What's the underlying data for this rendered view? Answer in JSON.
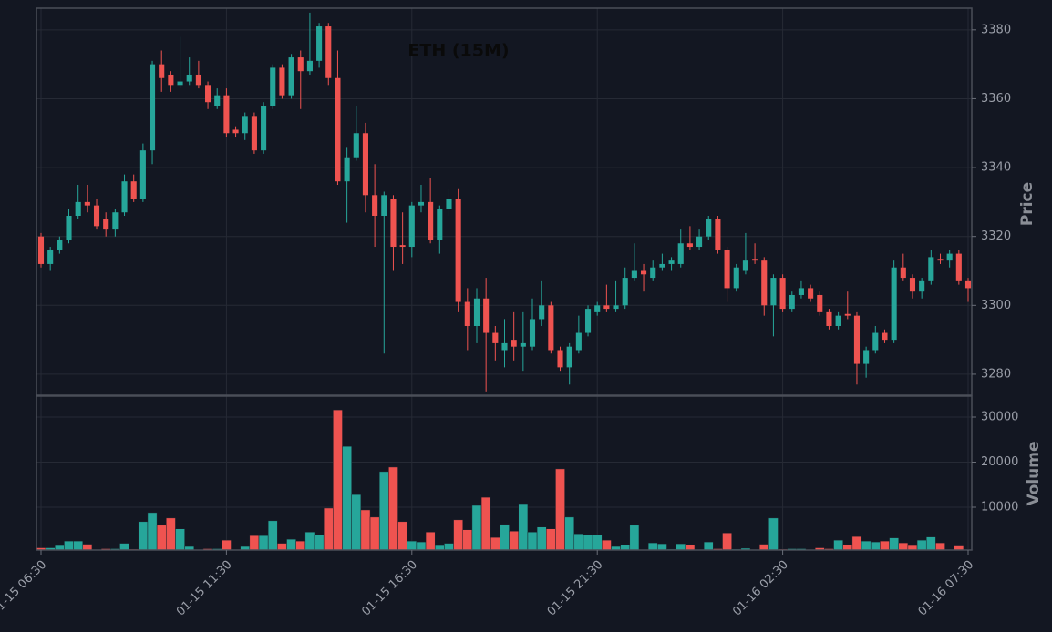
{
  "chart_data": {
    "type": "candlestick",
    "title": "ETH (15M)",
    "categories": [
      "01-15 06:30",
      null,
      null,
      null,
      null,
      null,
      null,
      null,
      null,
      null,
      null,
      null,
      null,
      null,
      null,
      null,
      null,
      null,
      null,
      null,
      "01-15 11:30",
      null,
      null,
      null,
      null,
      null,
      null,
      null,
      null,
      null,
      null,
      null,
      null,
      null,
      null,
      null,
      null,
      null,
      null,
      null,
      "01-15 16:30",
      null,
      null,
      null,
      null,
      null,
      null,
      null,
      null,
      null,
      null,
      null,
      null,
      null,
      null,
      null,
      null,
      null,
      null,
      null,
      "01-15 21:30",
      null,
      null,
      null,
      null,
      null,
      null,
      null,
      null,
      null,
      null,
      null,
      null,
      null,
      null,
      null,
      null,
      null,
      null,
      null,
      "01-16 02:30",
      null,
      null,
      null,
      null,
      null,
      null,
      null,
      null,
      null,
      null,
      null,
      null,
      null,
      null,
      null,
      null,
      null,
      null,
      null,
      "01-16 07:30"
    ],
    "open": [
      3320,
      3312,
      3316,
      3319,
      3326,
      3330,
      3329,
      3325,
      3322,
      3327,
      3336,
      3331,
      3345,
      3370,
      3367,
      3364,
      3365,
      3367,
      3364,
      3358,
      3361,
      3351,
      3350,
      3355,
      3345,
      3358,
      3369,
      3361,
      3372,
      3368,
      3371,
      3381,
      3366,
      3336,
      3343,
      3350,
      3332,
      3326,
      3331,
      3317.5,
      3317,
      3329,
      3330,
      3319,
      3328,
      3331,
      3301,
      3294,
      3302,
      3292,
      3287,
      3290,
      3288,
      3288,
      3296,
      3300,
      3287,
      3282,
      3287,
      3292,
      3298,
      3300,
      3299,
      3300,
      3308,
      3310,
      3308,
      3311,
      3312,
      3312,
      3318,
      3317,
      3320,
      3325,
      3316,
      3305,
      3310,
      3313.5,
      3313,
      3300,
      3308,
      3299,
      3303,
      3305,
      3303,
      3298,
      3294,
      3297.5,
      3297,
      3283,
      3287,
      3292,
      3290,
      3311,
      3308,
      3304,
      3307,
      3313.5,
      3313,
      3315,
      3307
    ],
    "high": [
      3321,
      3317,
      3320,
      3328,
      3335,
      3335,
      3331,
      3327,
      3328,
      3338,
      3338,
      3347,
      3371,
      3374,
      3368,
      3378,
      3372,
      3371,
      3365,
      3363,
      3363,
      3352,
      3356,
      3356,
      3359,
      3370,
      3370,
      3373,
      3374,
      3385,
      3382,
      3382,
      3374,
      3346,
      3358,
      3353,
      3341,
      3333,
      3332,
      3327,
      3330,
      3335,
      3337,
      3329,
      3334,
      3334,
      3305,
      3305,
      3308,
      3294,
      3296,
      3298,
      3298,
      3302,
      3307,
      3301,
      3288,
      3289,
      3297,
      3300,
      3301,
      3306,
      3307,
      3311,
      3318,
      3312,
      3313,
      3315,
      3314,
      3322,
      3323,
      3322,
      3326,
      3326,
      3317,
      3312,
      3321,
      3318,
      3314,
      3309,
      3309,
      3304,
      3307,
      3306,
      3304,
      3299,
      3298,
      3304,
      3298,
      3288,
      3294,
      3293,
      3313,
      3315,
      3309,
      3308,
      3316,
      3315,
      3316,
      3316,
      3308
    ],
    "low": [
      3311,
      3310,
      3315,
      3318,
      3325,
      3327,
      3322,
      3320,
      3320,
      3326,
      3330,
      3330,
      3341,
      3362,
      3362,
      3363,
      3364,
      3363,
      3357,
      3357,
      3349,
      3349,
      3348,
      3344,
      3344,
      3357,
      3360,
      3360,
      3357,
      3367,
      3369,
      3364,
      3335,
      3324,
      3342,
      3327,
      3317,
      3286,
      3310,
      3312,
      3314,
      3327,
      3318,
      3315,
      3326,
      3298,
      3287,
      3289,
      3275,
      3284,
      3282,
      3284,
      3281,
      3287,
      3294,
      3286,
      3281,
      3277,
      3286,
      3291,
      3297,
      3298,
      3298,
      3299,
      3307,
      3304,
      3307,
      3310,
      3310,
      3311,
      3316,
      3316,
      3319,
      3315,
      3301,
      3304,
      3309,
      3312,
      3297,
      3291,
      3298,
      3298,
      3302,
      3301,
      3297,
      3293,
      3293,
      3296,
      3277,
      3279,
      3286,
      3289,
      3289,
      3307,
      3302,
      3302,
      3306,
      3312,
      3311,
      3306,
      3301
    ],
    "close": [
      3312,
      3316,
      3319,
      3326,
      3330,
      3329,
      3323,
      3322,
      3327,
      3336,
      3331,
      3345,
      3370,
      3366,
      3364,
      3365,
      3367,
      3364,
      3359,
      3361,
      3350,
      3350,
      3355,
      3345,
      3358,
      3369,
      3361,
      3372,
      3368,
      3371,
      3381,
      3366,
      3336,
      3343,
      3350,
      3332,
      3326,
      3332,
      3317,
      3317,
      3329,
      3330,
      3319,
      3328,
      3331,
      3301,
      3294,
      3302,
      3292,
      3289,
      3289,
      3288,
      3289,
      3296,
      3300,
      3287,
      3282,
      3288,
      3292,
      3299,
      3300,
      3299,
      3300,
      3308,
      3310,
      3309,
      3311,
      3312,
      3313,
      3318,
      3317,
      3320,
      3325,
      3316,
      3305,
      3311,
      3313,
      3313,
      3300,
      3308,
      3299,
      3303,
      3305,
      3302,
      3298,
      3294,
      3297,
      3297,
      3283,
      3287,
      3292,
      3290,
      3311,
      3308,
      3304,
      3307,
      3314,
      3313,
      3315,
      3307,
      3305
    ],
    "volume": [
      1000,
      1000,
      1500,
      2500,
      2500,
      1800,
      600,
      800,
      800,
      2000,
      700,
      6800,
      8800,
      6000,
      7600,
      5200,
      1300,
      600,
      800,
      800,
      2700,
      600,
      1300,
      3700,
      3700,
      7000,
      2000,
      2900,
      2500,
      4500,
      3900,
      9800,
      31600,
      23500,
      12800,
      9400,
      7800,
      17900,
      18900,
      6800,
      2500,
      2300,
      4500,
      1500,
      2000,
      7200,
      5000,
      10400,
      12200,
      3300,
      6200,
      4700,
      10800,
      4500,
      5600,
      5200,
      18500,
      7800,
      4100,
      3900,
      3900,
      2700,
      1300,
      1600,
      6000,
      500,
      2100,
      1900,
      700,
      1900,
      1700,
      600,
      2300,
      800,
      4300,
      700,
      900,
      600,
      1800,
      7600,
      700,
      800,
      800,
      500,
      1000,
      800,
      2700,
      1700,
      3500,
      2500,
      2300,
      2500,
      3200,
      2100,
      1500,
      2700,
      3400,
      2100,
      600,
      1400,
      600
    ],
    "up_color": "#26a69a",
    "down_color": "#ef5350",
    "ylim": [
      3273.9,
      3386.3
    ],
    "yticks": [
      3280,
      3300,
      3320,
      3340,
      3360,
      3380
    ],
    "y_label": "Price",
    "y2lim": [
      500,
      34650
    ],
    "y2ticks": [
      10000,
      20000,
      30000
    ],
    "y2_label": "Volume",
    "grid": true
  }
}
